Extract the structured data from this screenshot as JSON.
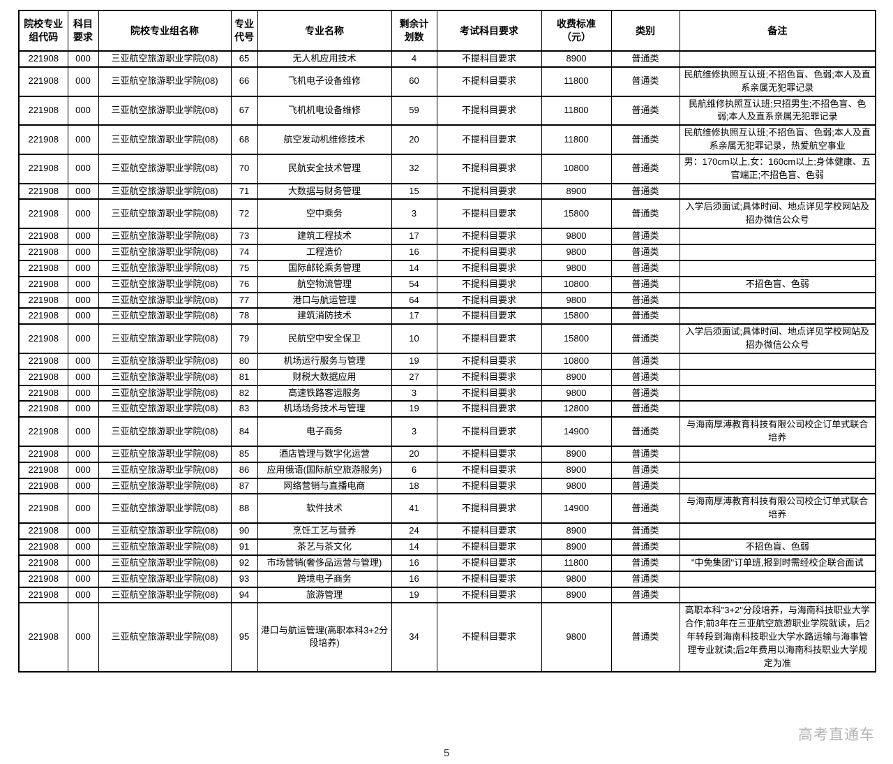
{
  "colors": {
    "border": "#000000",
    "text": "#000000",
    "watermark": "#b3b3b3"
  },
  "table": {
    "headers": [
      "院校专业\n组代码",
      "科目\n要求",
      "院校专业组名称",
      "专业\n代号",
      "专业名称",
      "剩余计\n划数",
      "考试科目要求",
      "收费标准\n（元）",
      "类别",
      "备注"
    ],
    "rows": [
      {
        "group_code": "221908",
        "subject_req": "000",
        "group_name": "三亚航空旅游职业学院(08)",
        "major_code": "65",
        "major_name": "无人机应用技术",
        "remaining": "4",
        "exam_req": "不提科目要求",
        "fee": "8900",
        "category": "普通类",
        "remark": ""
      },
      {
        "group_code": "221908",
        "subject_req": "000",
        "group_name": "三亚航空旅游职业学院(08)",
        "major_code": "66",
        "major_name": "飞机电子设备维修",
        "remaining": "60",
        "exam_req": "不提科目要求",
        "fee": "11800",
        "category": "普通类",
        "remark": "民航维修执照互认班;不招色盲、色弱;本人及直系亲属无犯罪记录"
      },
      {
        "group_code": "221908",
        "subject_req": "000",
        "group_name": "三亚航空旅游职业学院(08)",
        "major_code": "67",
        "major_name": "飞机机电设备维修",
        "remaining": "59",
        "exam_req": "不提科目要求",
        "fee": "11800",
        "category": "普通类",
        "remark": "民航维修执照互认班;只招男生;不招色盲、色弱;本人及直系亲属无犯罪记录"
      },
      {
        "group_code": "221908",
        "subject_req": "000",
        "group_name": "三亚航空旅游职业学院(08)",
        "major_code": "68",
        "major_name": "航空发动机维修技术",
        "remaining": "20",
        "exam_req": "不提科目要求",
        "fee": "11800",
        "category": "普通类",
        "remark": "民航维修执照互认班;不招色盲、色弱;本人及直系亲属无犯罪记录，热爱航空事业"
      },
      {
        "group_code": "221908",
        "subject_req": "000",
        "group_name": "三亚航空旅游职业学院(08)",
        "major_code": "70",
        "major_name": "民航安全技术管理",
        "remaining": "32",
        "exam_req": "不提科目要求",
        "fee": "10800",
        "category": "普通类",
        "remark": "男：170cm以上,女：160cm以上;身体健康、五官端正;不招色盲、色弱"
      },
      {
        "group_code": "221908",
        "subject_req": "000",
        "group_name": "三亚航空旅游职业学院(08)",
        "major_code": "71",
        "major_name": "大数据与财务管理",
        "remaining": "15",
        "exam_req": "不提科目要求",
        "fee": "8900",
        "category": "普通类",
        "remark": ""
      },
      {
        "group_code": "221908",
        "subject_req": "000",
        "group_name": "三亚航空旅游职业学院(08)",
        "major_code": "72",
        "major_name": "空中乘务",
        "remaining": "3",
        "exam_req": "不提科目要求",
        "fee": "15800",
        "category": "普通类",
        "remark": "入学后须面试;具体时间、地点详见学校网站及招办微信公众号"
      },
      {
        "group_code": "221908",
        "subject_req": "000",
        "group_name": "三亚航空旅游职业学院(08)",
        "major_code": "73",
        "major_name": "建筑工程技术",
        "remaining": "17",
        "exam_req": "不提科目要求",
        "fee": "9800",
        "category": "普通类",
        "remark": ""
      },
      {
        "group_code": "221908",
        "subject_req": "000",
        "group_name": "三亚航空旅游职业学院(08)",
        "major_code": "74",
        "major_name": "工程造价",
        "remaining": "16",
        "exam_req": "不提科目要求",
        "fee": "9800",
        "category": "普通类",
        "remark": ""
      },
      {
        "group_code": "221908",
        "subject_req": "000",
        "group_name": "三亚航空旅游职业学院(08)",
        "major_code": "75",
        "major_name": "国际邮轮乘务管理",
        "remaining": "14",
        "exam_req": "不提科目要求",
        "fee": "9800",
        "category": "普通类",
        "remark": ""
      },
      {
        "group_code": "221908",
        "subject_req": "000",
        "group_name": "三亚航空旅游职业学院(08)",
        "major_code": "76",
        "major_name": "航空物流管理",
        "remaining": "54",
        "exam_req": "不提科目要求",
        "fee": "10800",
        "category": "普通类",
        "remark": "不招色盲、色弱"
      },
      {
        "group_code": "221908",
        "subject_req": "000",
        "group_name": "三亚航空旅游职业学院(08)",
        "major_code": "77",
        "major_name": "港口与航运管理",
        "remaining": "64",
        "exam_req": "不提科目要求",
        "fee": "9800",
        "category": "普通类",
        "remark": ""
      },
      {
        "group_code": "221908",
        "subject_req": "000",
        "group_name": "三亚航空旅游职业学院(08)",
        "major_code": "78",
        "major_name": "建筑消防技术",
        "remaining": "17",
        "exam_req": "不提科目要求",
        "fee": "15800",
        "category": "普通类",
        "remark": ""
      },
      {
        "group_code": "221908",
        "subject_req": "000",
        "group_name": "三亚航空旅游职业学院(08)",
        "major_code": "79",
        "major_name": "民航空中安全保卫",
        "remaining": "10",
        "exam_req": "不提科目要求",
        "fee": "15800",
        "category": "普通类",
        "remark": "入学后须面试;具体时间、地点详见学校网站及招办微信公众号"
      },
      {
        "group_code": "221908",
        "subject_req": "000",
        "group_name": "三亚航空旅游职业学院(08)",
        "major_code": "80",
        "major_name": "机场运行服务与管理",
        "remaining": "19",
        "exam_req": "不提科目要求",
        "fee": "10800",
        "category": "普通类",
        "remark": ""
      },
      {
        "group_code": "221908",
        "subject_req": "000",
        "group_name": "三亚航空旅游职业学院(08)",
        "major_code": "81",
        "major_name": "财税大数据应用",
        "remaining": "27",
        "exam_req": "不提科目要求",
        "fee": "8900",
        "category": "普通类",
        "remark": ""
      },
      {
        "group_code": "221908",
        "subject_req": "000",
        "group_name": "三亚航空旅游职业学院(08)",
        "major_code": "82",
        "major_name": "高速铁路客运服务",
        "remaining": "3",
        "exam_req": "不提科目要求",
        "fee": "9800",
        "category": "普通类",
        "remark": ""
      },
      {
        "group_code": "221908",
        "subject_req": "000",
        "group_name": "三亚航空旅游职业学院(08)",
        "major_code": "83",
        "major_name": "机场场务技术与管理",
        "remaining": "19",
        "exam_req": "不提科目要求",
        "fee": "12800",
        "category": "普通类",
        "remark": ""
      },
      {
        "group_code": "221908",
        "subject_req": "000",
        "group_name": "三亚航空旅游职业学院(08)",
        "major_code": "84",
        "major_name": "电子商务",
        "remaining": "3",
        "exam_req": "不提科目要求",
        "fee": "14900",
        "category": "普通类",
        "remark": "与海南厚溥教育科技有限公司校企订单式联合培养"
      },
      {
        "group_code": "221908",
        "subject_req": "000",
        "group_name": "三亚航空旅游职业学院(08)",
        "major_code": "85",
        "major_name": "酒店管理与数字化运营",
        "remaining": "20",
        "exam_req": "不提科目要求",
        "fee": "8900",
        "category": "普通类",
        "remark": ""
      },
      {
        "group_code": "221908",
        "subject_req": "000",
        "group_name": "三亚航空旅游职业学院(08)",
        "major_code": "86",
        "major_name": "应用俄语(国际航空旅游服务)",
        "remaining": "6",
        "exam_req": "不提科目要求",
        "fee": "8900",
        "category": "普通类",
        "remark": ""
      },
      {
        "group_code": "221908",
        "subject_req": "000",
        "group_name": "三亚航空旅游职业学院(08)",
        "major_code": "87",
        "major_name": "网络营销与直播电商",
        "remaining": "18",
        "exam_req": "不提科目要求",
        "fee": "9800",
        "category": "普通类",
        "remark": ""
      },
      {
        "group_code": "221908",
        "subject_req": "000",
        "group_name": "三亚航空旅游职业学院(08)",
        "major_code": "88",
        "major_name": "软件技术",
        "remaining": "41",
        "exam_req": "不提科目要求",
        "fee": "14900",
        "category": "普通类",
        "remark": "与海南厚溥教育科技有限公司校企订单式联合培养"
      },
      {
        "group_code": "221908",
        "subject_req": "000",
        "group_name": "三亚航空旅游职业学院(08)",
        "major_code": "90",
        "major_name": "烹饪工艺与营养",
        "remaining": "24",
        "exam_req": "不提科目要求",
        "fee": "8900",
        "category": "普通类",
        "remark": ""
      },
      {
        "group_code": "221908",
        "subject_req": "000",
        "group_name": "三亚航空旅游职业学院(08)",
        "major_code": "91",
        "major_name": "茶艺与茶文化",
        "remaining": "14",
        "exam_req": "不提科目要求",
        "fee": "8900",
        "category": "普通类",
        "remark": "不招色盲、色弱"
      },
      {
        "group_code": "221908",
        "subject_req": "000",
        "group_name": "三亚航空旅游职业学院(08)",
        "major_code": "92",
        "major_name": "市场营销(奢侈品运营与管理)",
        "remaining": "16",
        "exam_req": "不提科目要求",
        "fee": "11800",
        "category": "普通类",
        "remark": "\"中免集团\"订单班,报到时需经校企联合面试"
      },
      {
        "group_code": "221908",
        "subject_req": "000",
        "group_name": "三亚航空旅游职业学院(08)",
        "major_code": "93",
        "major_name": "跨境电子商务",
        "remaining": "16",
        "exam_req": "不提科目要求",
        "fee": "9800",
        "category": "普通类",
        "remark": ""
      },
      {
        "group_code": "221908",
        "subject_req": "000",
        "group_name": "三亚航空旅游职业学院(08)",
        "major_code": "94",
        "major_name": "旅游管理",
        "remaining": "19",
        "exam_req": "不提科目要求",
        "fee": "8900",
        "category": "普通类",
        "remark": ""
      },
      {
        "group_code": "221908",
        "subject_req": "000",
        "group_name": "三亚航空旅游职业学院(08)",
        "major_code": "95",
        "major_name": "港口与航运管理(高职本科3+2分段培养)",
        "remaining": "34",
        "exam_req": "不提科目要求",
        "fee": "9800",
        "category": "普通类",
        "remark": "高职本科\"3+2\"分段培养，与海南科技职业大学合作;前3年在三亚航空旅游职业学院就读，后2年转段到海南科技职业大学水路运输与海事管理专业就读;后2年费用以海南科技职业大学规定为准"
      }
    ]
  },
  "footer": {
    "watermark": "高考直通车",
    "page_number": "5"
  }
}
